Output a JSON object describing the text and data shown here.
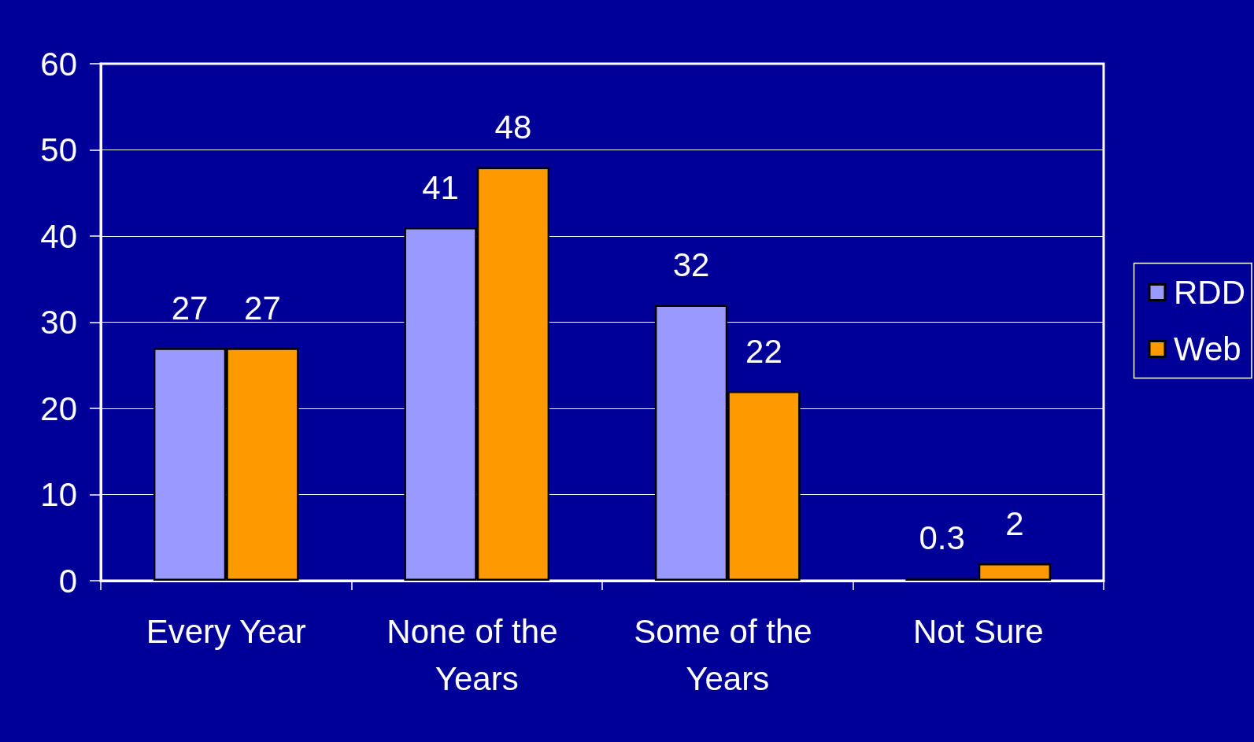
{
  "chart_data": {
    "type": "bar",
    "categories": [
      "Every Year",
      "None of the Years",
      "Some of the Years",
      "Not Sure"
    ],
    "series": [
      {
        "name": "RDD",
        "color": "#9999ff",
        "values": [
          27,
          41,
          32,
          0.3
        ]
      },
      {
        "name": "Web",
        "color": "#ff9900",
        "values": [
          27,
          48,
          22,
          2
        ]
      }
    ],
    "ylim": [
      0,
      60
    ],
    "yticks": [
      0,
      10,
      20,
      30,
      40,
      50,
      60
    ],
    "grid": "y",
    "legend": "right",
    "data_labels": true
  }
}
